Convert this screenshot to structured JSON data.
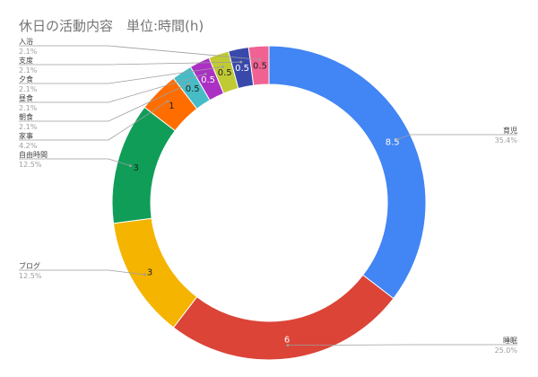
{
  "chart_data": {
    "type": "pie",
    "donut": true,
    "title": "休日の活動内容　単位:時間(h)",
    "slices": [
      {
        "label": "育児",
        "value": 8.5,
        "percent": "35.4%",
        "color": "#4285f4",
        "value_color": "#ffffff"
      },
      {
        "label": "睡眠",
        "value": 6,
        "percent": "25.0%",
        "color": "#db4437",
        "value_color": "#ffffff"
      },
      {
        "label": "ブログ",
        "value": 3,
        "percent": "12.5%",
        "color": "#f4b400",
        "value_color": "#222222"
      },
      {
        "label": "自由時間",
        "value": 3,
        "percent": "12.5%",
        "color": "#0f9d58",
        "value_color": "#222222"
      },
      {
        "label": "家事",
        "value": 1,
        "percent": "4.2%",
        "color": "#ff6d00",
        "value_color": "#222222"
      },
      {
        "label": "朝食",
        "value": 0.5,
        "percent": "2.1%",
        "color": "#46bdc6",
        "value_color": "#222222"
      },
      {
        "label": "昼食",
        "value": 0.5,
        "percent": "2.1%",
        "color": "#ab30c4",
        "value_color": "#ffffff"
      },
      {
        "label": "夕食",
        "value": 0.5,
        "percent": "2.1%",
        "color": "#c0ca33",
        "value_color": "#222222"
      },
      {
        "label": "支度",
        "value": 0.5,
        "percent": "2.1%",
        "color": "#3949ab",
        "value_color": "#ffffff"
      },
      {
        "label": "入浴",
        "value": 0.5,
        "percent": "2.1%",
        "color": "#f06292",
        "value_color": "#222222"
      }
    ],
    "legend": "none"
  }
}
